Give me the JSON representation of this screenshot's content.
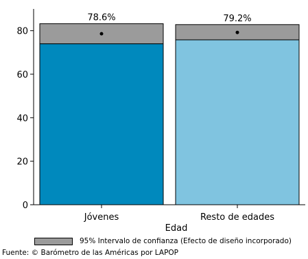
{
  "chart_data": {
    "type": "bar",
    "categories": [
      "Jóvenes",
      "Resto de edades"
    ],
    "values": [
      78.6,
      79.2
    ],
    "value_labels": [
      "78.6%",
      "79.2%"
    ],
    "ci_low": [
      74,
      75.8
    ],
    "ci_high": [
      83.2,
      82.8
    ],
    "colors": [
      "#0089bd",
      "#80c4e0"
    ],
    "ci_color": "#9b9b9b",
    "xlabel": "Edad",
    "ylabel": "",
    "ylim": [
      0,
      90
    ],
    "yticks": [
      0,
      20,
      40,
      60,
      80
    ],
    "grid": false
  },
  "legend": {
    "label": "95% Intervalo de confianza (Efecto de diseño incorporado)"
  },
  "source": "Fuente: © Barómetro de las Américas por LAPOP"
}
